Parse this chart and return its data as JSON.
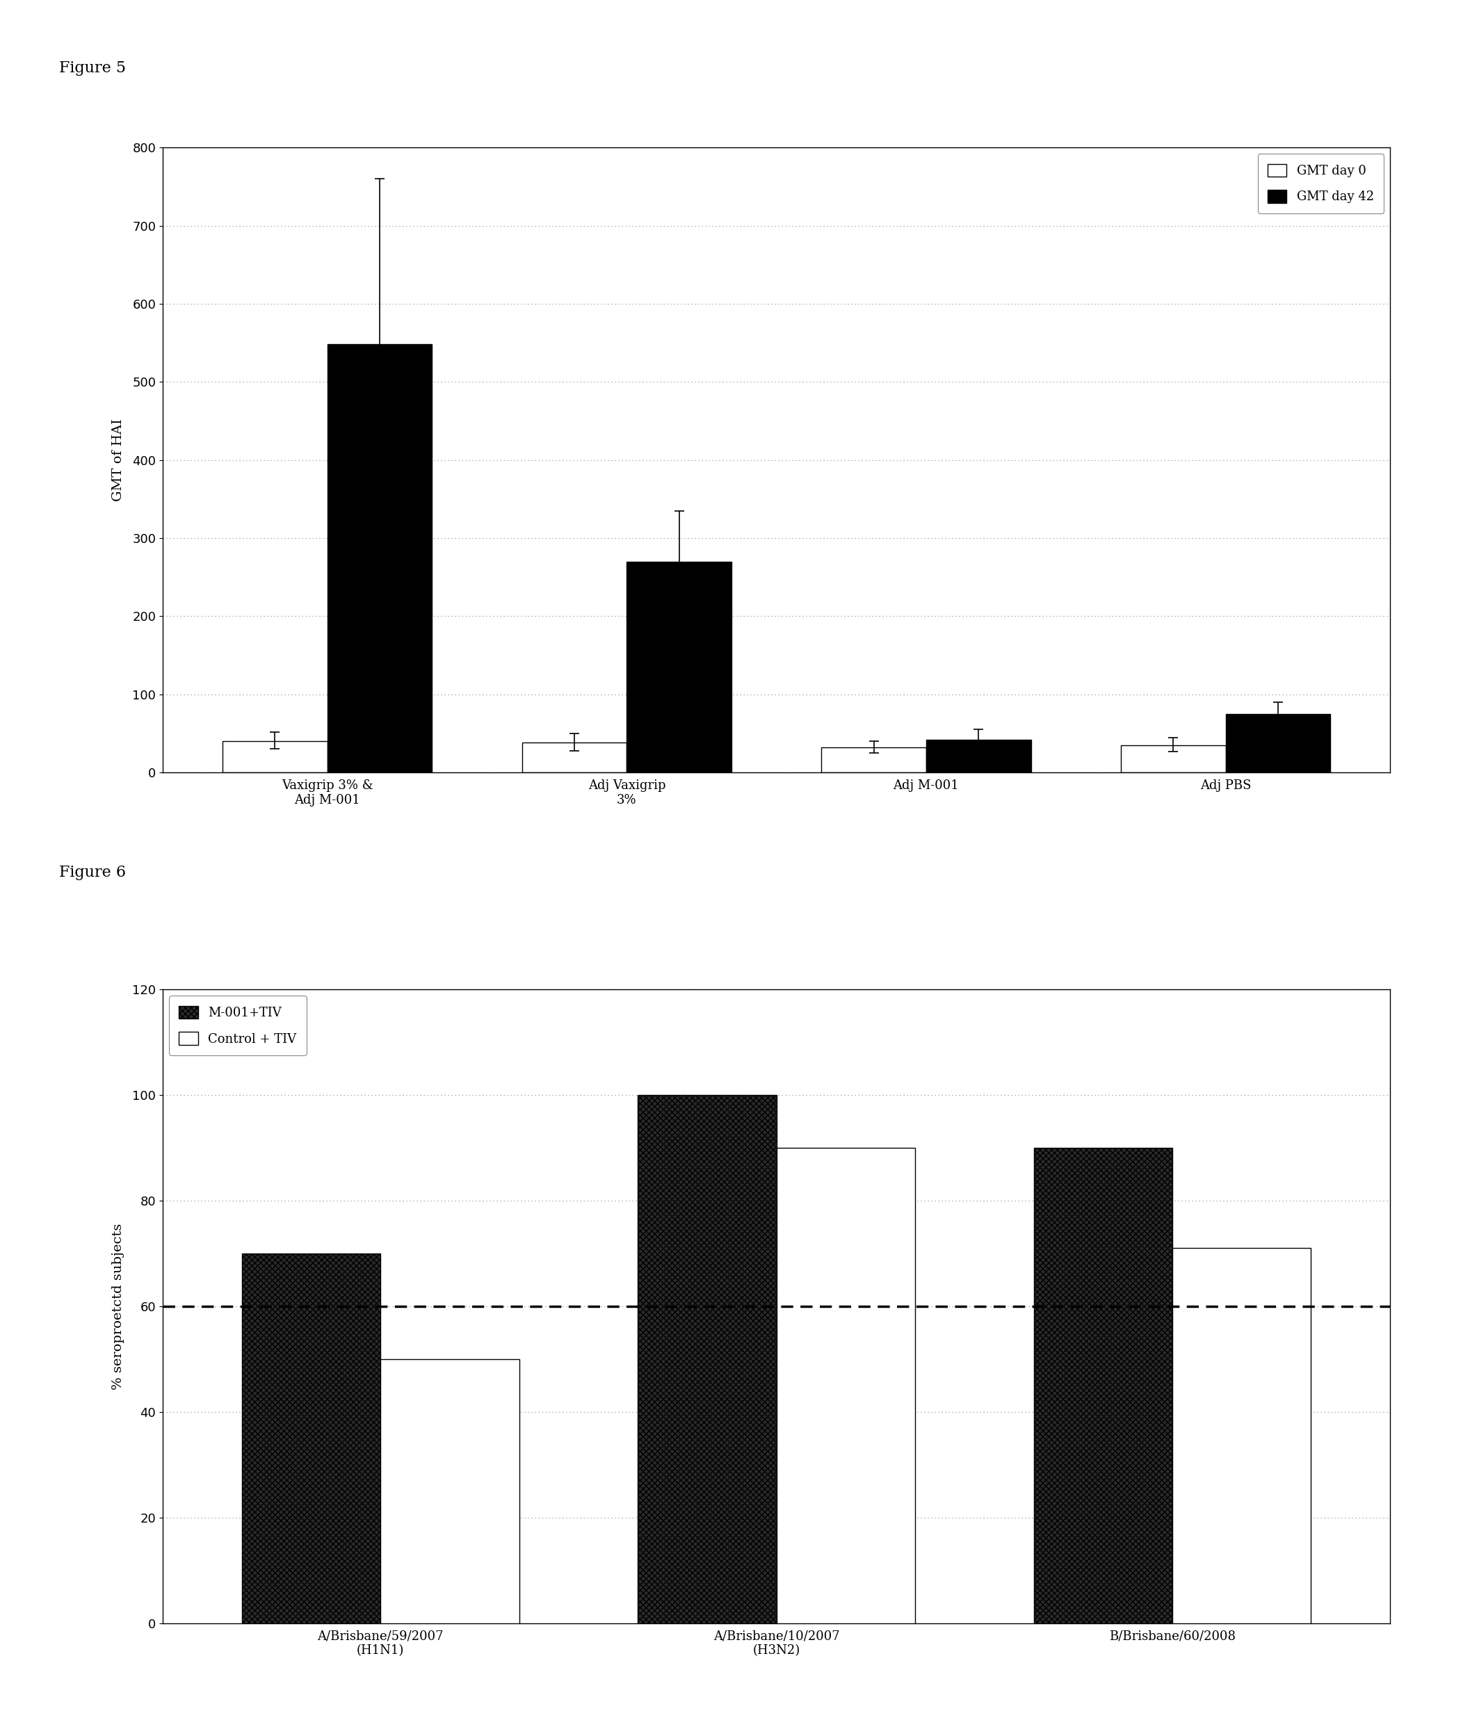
{
  "fig5_title": "Figure 5",
  "fig6_title": "Figure 6",
  "fig5_categories": [
    "Vaxigrip 3% &\nAdj M-001",
    "Adj Vaxigrip\n3%",
    "Adj M-001",
    "Adj PBS"
  ],
  "fig5_day0": [
    40,
    38,
    32,
    35
  ],
  "fig5_day42": [
    548,
    270,
    42,
    75
  ],
  "fig5_day42_err_upper": [
    212,
    65,
    13,
    15
  ],
  "fig5_day42_err_lower": [
    148,
    60,
    10,
    13
  ],
  "fig5_day0_err_upper": [
    12,
    12,
    8,
    10
  ],
  "fig5_day0_err_lower": [
    10,
    10,
    7,
    8
  ],
  "fig5_ylabel": "GMT of HAI",
  "fig5_ylim": [
    0,
    800
  ],
  "fig5_yticks": [
    0,
    100,
    200,
    300,
    400,
    500,
    600,
    700,
    800
  ],
  "fig5_legend_day0": "GMT day 0",
  "fig5_legend_day42": "GMT day 42",
  "fig6_categories": [
    "A/Brisbane/59/2007\n(H1N1)",
    "A/Brisbane/10/2007\n(H3N2)",
    "B/Brisbane/60/2008"
  ],
  "fig6_m001": [
    70,
    100,
    90
  ],
  "fig6_control": [
    50,
    90,
    71
  ],
  "fig6_ylabel": "% seroproetctd subjects",
  "fig6_ylim": [
    0,
    120
  ],
  "fig6_yticks": [
    0,
    20,
    40,
    60,
    80,
    100,
    120
  ],
  "fig6_hline": 60,
  "fig6_legend_m001": "M-001+TIV",
  "fig6_legend_control": "Control + TIV",
  "bar_width": 0.35,
  "color_white": "#ffffff",
  "color_black": "#000000",
  "color_dark": "#1a1a1a",
  "grid_color": "#999999",
  "background_color": "#ffffff",
  "figure_label_fontsize": 16,
  "axis_label_fontsize": 14,
  "tick_fontsize": 13,
  "legend_fontsize": 13
}
